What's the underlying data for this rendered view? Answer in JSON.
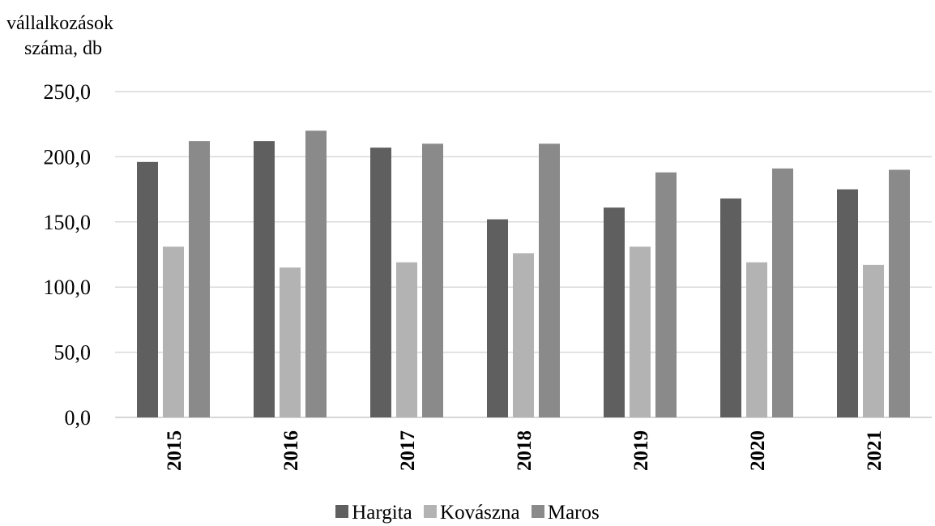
{
  "chart_data": {
    "type": "bar",
    "ylabel_line1": "vállalkozások",
    "ylabel_line2": "száma, db",
    "categories": [
      "2015",
      "2016",
      "2017",
      "2018",
      "2019",
      "2020",
      "2021"
    ],
    "yticks": [
      "0,0",
      "50,0",
      "100,0",
      "150,0",
      "200,0",
      "250,0"
    ],
    "ylim": [
      0,
      250
    ],
    "grid": true,
    "legend_position": "bottom",
    "series": [
      {
        "name": "Hargita",
        "color": "#5f5f5f",
        "values": [
          196,
          212,
          207,
          152,
          161,
          168,
          175
        ]
      },
      {
        "name": "Kovászna",
        "color": "#b3b3b3",
        "values": [
          131,
          115,
          119,
          126,
          131,
          119,
          117
        ]
      },
      {
        "name": "Maros",
        "color": "#8a8a8a",
        "values": [
          212,
          220,
          210,
          210,
          188,
          191,
          190
        ]
      }
    ]
  }
}
